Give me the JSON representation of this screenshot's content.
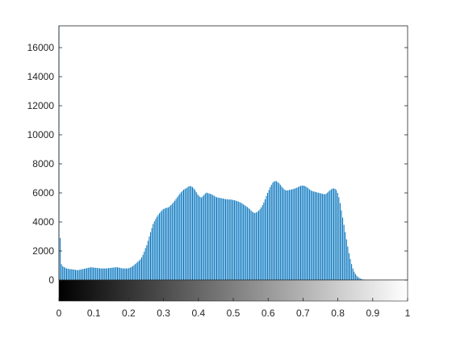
{
  "chart_data": {
    "type": "bar",
    "title": "",
    "xlabel": "",
    "ylabel": "",
    "xlim": [
      0,
      1
    ],
    "ylim": [
      0,
      17500
    ],
    "grid": false,
    "bar_color": "#0072BD",
    "colorbar": {
      "type": "grayscale",
      "range": [
        0,
        1
      ]
    },
    "x_ticks": [
      "0",
      "0.1",
      "0.2",
      "0.3",
      "0.4",
      "0.5",
      "0.6",
      "0.7",
      "0.8",
      "0.9",
      "1"
    ],
    "y_ticks": [
      "0",
      "2000",
      "4000",
      "6000",
      "8000",
      "10000",
      "12000",
      "14000",
      "16000"
    ],
    "bins": 256,
    "series": [
      {
        "x_range": [
          0,
          1
        ],
        "values": [
          17500,
          2900,
          1100,
          950,
          900,
          850,
          800,
          780,
          760,
          750,
          740,
          730,
          720,
          700,
          690,
          680,
          700,
          720,
          740,
          760,
          780,
          800,
          820,
          840,
          860,
          880,
          870,
          860,
          850,
          840,
          830,
          820,
          810,
          800,
          800,
          800,
          800,
          800,
          810,
          820,
          830,
          840,
          850,
          860,
          870,
          880,
          880,
          860,
          840,
          820,
          800,
          800,
          800,
          800,
          800,
          820,
          860,
          900,
          960,
          1030,
          1100,
          1180,
          1260,
          1340,
          1420,
          1560,
          1740,
          1960,
          2200,
          2400,
          2700,
          3000,
          3300,
          3580,
          3860,
          4040,
          4200,
          4360,
          4480,
          4600,
          4700,
          4800,
          4880,
          4920,
          4960,
          4980,
          5000,
          5080,
          5160,
          5240,
          5350,
          5460,
          5580,
          5700,
          5820,
          5940,
          6040,
          6130,
          6220,
          6270,
          6320,
          6380,
          6450,
          6470,
          6450,
          6400,
          6300,
          6200,
          6050,
          5900,
          5800,
          5720,
          5680,
          5760,
          5860,
          5960,
          6020,
          5990,
          5960,
          5930,
          5900,
          5850,
          5800,
          5740,
          5700,
          5680,
          5660,
          5640,
          5630,
          5610,
          5590,
          5570,
          5560,
          5550,
          5545,
          5540,
          5530,
          5510,
          5490,
          5470,
          5440,
          5400,
          5360,
          5320,
          5270,
          5210,
          5150,
          5090,
          5030,
          4960,
          4880,
          4780,
          4700,
          4650,
          4620,
          4650,
          4700,
          4780,
          4880,
          5000,
          5160,
          5340,
          5560,
          5780,
          6000,
          6200,
          6400,
          6560,
          6700,
          6780,
          6820,
          6800,
          6740,
          6660,
          6560,
          6440,
          6340,
          6240,
          6190,
          6170,
          6180,
          6200,
          6220,
          6240,
          6260,
          6290,
          6320,
          6360,
          6400,
          6450,
          6480,
          6500,
          6500,
          6480,
          6440,
          6380,
          6310,
          6240,
          6180,
          6130,
          6100,
          6080,
          6060,
          6030,
          6000,
          5980,
          5960,
          5940,
          5920,
          5900,
          5950,
          6020,
          6100,
          6180,
          6250,
          6300,
          6300,
          6280,
          6200,
          6000,
          5700,
          5300,
          4800,
          4300,
          3800,
          3300,
          2800,
          2300,
          1850,
          1450,
          1100,
          800,
          580,
          420,
          300,
          210,
          150,
          100,
          65,
          40,
          25,
          15,
          8,
          4,
          2,
          1,
          0,
          0,
          0,
          0,
          0,
          0,
          0,
          0,
          0,
          0,
          0,
          0,
          0,
          0,
          0,
          0,
          0,
          0,
          0,
          0,
          0,
          0,
          0,
          0,
          0,
          0,
          0,
          0,
          0
        ]
      }
    ]
  }
}
